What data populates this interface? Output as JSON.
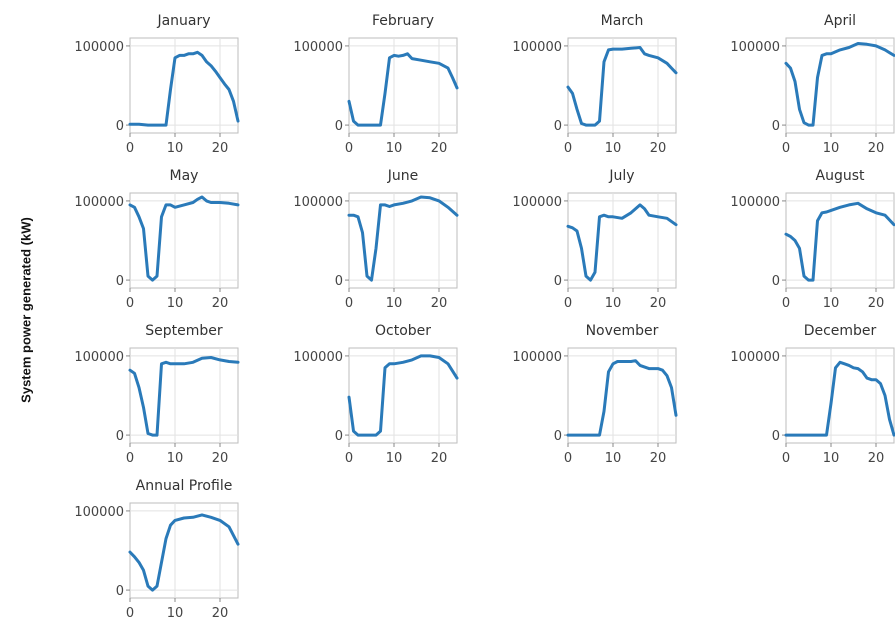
{
  "figure": {
    "ylabel": "System power generated (kW)"
  },
  "chart_data": [
    {
      "type": "line",
      "title": "January",
      "xlim": [
        0,
        24
      ],
      "ylim": [
        -10000,
        110000
      ],
      "xticks": [
        0,
        10,
        20
      ],
      "yticks": [
        0,
        100000
      ],
      "grid": true,
      "color": "#2a7ab9",
      "x": [
        0,
        2,
        4,
        6,
        7,
        8,
        9,
        10,
        11,
        12,
        13,
        14,
        15,
        16,
        17,
        18,
        19,
        20,
        21,
        22,
        23,
        24
      ],
      "values": [
        1000,
        1000,
        0,
        0,
        0,
        0,
        45000,
        85000,
        88000,
        88000,
        90000,
        90000,
        92000,
        88000,
        80000,
        75000,
        68000,
        60000,
        52000,
        45000,
        30000,
        5000
      ]
    },
    {
      "type": "line",
      "title": "February",
      "xlim": [
        0,
        24
      ],
      "ylim": [
        -10000,
        110000
      ],
      "xticks": [
        0,
        10,
        20
      ],
      "yticks": [
        0,
        100000
      ],
      "grid": true,
      "color": "#2a7ab9",
      "x": [
        0,
        1,
        2,
        3,
        4,
        5,
        6,
        7,
        8,
        9,
        10,
        11,
        12,
        13,
        14,
        16,
        18,
        20,
        22,
        23,
        24
      ],
      "values": [
        30000,
        5000,
        0,
        0,
        0,
        0,
        0,
        0,
        40000,
        85000,
        88000,
        87000,
        88000,
        90000,
        84000,
        82000,
        80000,
        78000,
        72000,
        60000,
        47000
      ]
    },
    {
      "type": "line",
      "title": "March",
      "xlim": [
        0,
        24
      ],
      "ylim": [
        -10000,
        110000
      ],
      "xticks": [
        0,
        10,
        20
      ],
      "yticks": [
        0,
        100000
      ],
      "grid": true,
      "color": "#2a7ab9",
      "x": [
        0,
        1,
        2,
        3,
        4,
        5,
        6,
        7,
        8,
        9,
        10,
        12,
        14,
        16,
        17,
        18,
        20,
        22,
        23,
        24
      ],
      "values": [
        48000,
        40000,
        20000,
        2000,
        0,
        0,
        0,
        5000,
        80000,
        95000,
        96000,
        96000,
        97000,
        98000,
        90000,
        88000,
        85000,
        78000,
        72000,
        66000
      ]
    },
    {
      "type": "line",
      "title": "April",
      "xlim": [
        0,
        24
      ],
      "ylim": [
        -10000,
        110000
      ],
      "xticks": [
        0,
        10,
        20
      ],
      "yticks": [
        0,
        100000
      ],
      "grid": true,
      "color": "#2a7ab9",
      "x": [
        0,
        1,
        2,
        3,
        4,
        5,
        6,
        7,
        8,
        9,
        10,
        12,
        14,
        16,
        18,
        20,
        22,
        24
      ],
      "values": [
        78000,
        72000,
        55000,
        20000,
        3000,
        0,
        0,
        60000,
        88000,
        90000,
        90000,
        95000,
        98000,
        103000,
        102000,
        100000,
        95000,
        88000
      ]
    },
    {
      "type": "line",
      "title": "May",
      "xlim": [
        0,
        24
      ],
      "ylim": [
        -10000,
        110000
      ],
      "xticks": [
        0,
        10,
        20
      ],
      "yticks": [
        0,
        100000
      ],
      "grid": true,
      "color": "#2a7ab9",
      "x": [
        0,
        1,
        2,
        3,
        4,
        5,
        6,
        7,
        8,
        9,
        10,
        12,
        14,
        15,
        16,
        17,
        18,
        20,
        22,
        24
      ],
      "values": [
        95000,
        92000,
        80000,
        65000,
        5000,
        0,
        5000,
        80000,
        95000,
        95000,
        92000,
        95000,
        98000,
        102000,
        105000,
        100000,
        98000,
        98000,
        97000,
        95000
      ]
    },
    {
      "type": "line",
      "title": "June",
      "xlim": [
        0,
        24
      ],
      "ylim": [
        -10000,
        110000
      ],
      "xticks": [
        0,
        10,
        20
      ],
      "yticks": [
        0,
        100000
      ],
      "grid": true,
      "color": "#2a7ab9",
      "x": [
        0,
        1,
        2,
        3,
        4,
        5,
        6,
        7,
        8,
        9,
        10,
        12,
        14,
        16,
        18,
        20,
        22,
        24
      ],
      "values": [
        82000,
        82000,
        80000,
        60000,
        5000,
        0,
        40000,
        95000,
        95000,
        93000,
        95000,
        97000,
        100000,
        105000,
        104000,
        100000,
        92000,
        82000
      ]
    },
    {
      "type": "line",
      "title": "July",
      "xlim": [
        0,
        24
      ],
      "ylim": [
        -10000,
        110000
      ],
      "xticks": [
        0,
        10,
        20
      ],
      "yticks": [
        0,
        100000
      ],
      "grid": true,
      "color": "#2a7ab9",
      "x": [
        0,
        1,
        2,
        3,
        4,
        5,
        6,
        7,
        8,
        9,
        10,
        12,
        14,
        16,
        17,
        18,
        20,
        22,
        24
      ],
      "values": [
        68000,
        66000,
        62000,
        40000,
        5000,
        0,
        10000,
        80000,
        82000,
        80000,
        80000,
        78000,
        85000,
        95000,
        90000,
        82000,
        80000,
        78000,
        70000
      ]
    },
    {
      "type": "line",
      "title": "August",
      "xlim": [
        0,
        24
      ],
      "ylim": [
        -10000,
        110000
      ],
      "xticks": [
        0,
        10,
        20
      ],
      "yticks": [
        0,
        100000
      ],
      "grid": true,
      "color": "#2a7ab9",
      "x": [
        0,
        1,
        2,
        3,
        4,
        5,
        6,
        7,
        8,
        9,
        10,
        12,
        14,
        16,
        18,
        20,
        22,
        24
      ],
      "values": [
        58000,
        55000,
        50000,
        40000,
        5000,
        0,
        0,
        75000,
        85000,
        86000,
        88000,
        92000,
        95000,
        97000,
        90000,
        85000,
        82000,
        70000
      ]
    },
    {
      "type": "line",
      "title": "September",
      "xlim": [
        0,
        24
      ],
      "ylim": [
        -10000,
        110000
      ],
      "xticks": [
        0,
        10,
        20
      ],
      "yticks": [
        0,
        100000
      ],
      "grid": true,
      "color": "#2a7ab9",
      "x": [
        0,
        1,
        2,
        3,
        4,
        5,
        6,
        7,
        8,
        9,
        10,
        12,
        14,
        16,
        18,
        20,
        22,
        24
      ],
      "values": [
        82000,
        78000,
        60000,
        35000,
        2000,
        0,
        0,
        90000,
        92000,
        90000,
        90000,
        90000,
        92000,
        97000,
        98000,
        95000,
        93000,
        92000
      ]
    },
    {
      "type": "line",
      "title": "October",
      "xlim": [
        0,
        24
      ],
      "ylim": [
        -10000,
        110000
      ],
      "xticks": [
        0,
        10,
        20
      ],
      "yticks": [
        0,
        100000
      ],
      "grid": true,
      "color": "#2a7ab9",
      "x": [
        0,
        1,
        2,
        3,
        4,
        5,
        6,
        7,
        8,
        9,
        10,
        12,
        14,
        16,
        18,
        20,
        22,
        24
      ],
      "values": [
        48000,
        5000,
        0,
        0,
        0,
        0,
        0,
        5000,
        85000,
        90000,
        90000,
        92000,
        95000,
        100000,
        100000,
        98000,
        90000,
        72000
      ]
    },
    {
      "type": "line",
      "title": "November",
      "xlim": [
        0,
        24
      ],
      "ylim": [
        -10000,
        110000
      ],
      "xticks": [
        0,
        10,
        20
      ],
      "yticks": [
        0,
        100000
      ],
      "grid": true,
      "color": "#2a7ab9",
      "x": [
        0,
        2,
        4,
        6,
        7,
        8,
        9,
        10,
        11,
        12,
        14,
        15,
        16,
        18,
        20,
        21,
        22,
        23,
        24
      ],
      "values": [
        0,
        0,
        0,
        0,
        0,
        30000,
        80000,
        90000,
        93000,
        93000,
        93000,
        94000,
        88000,
        84000,
        84000,
        82000,
        75000,
        60000,
        25000
      ]
    },
    {
      "type": "line",
      "title": "December",
      "xlim": [
        0,
        24
      ],
      "ylim": [
        -10000,
        110000
      ],
      "xticks": [
        0,
        10,
        20
      ],
      "yticks": [
        0,
        100000
      ],
      "grid": true,
      "color": "#2a7ab9",
      "x": [
        0,
        2,
        4,
        6,
        8,
        9,
        10,
        11,
        12,
        13,
        14,
        15,
        16,
        17,
        18,
        19,
        20,
        21,
        22,
        23,
        24
      ],
      "values": [
        0,
        0,
        0,
        0,
        0,
        0,
        40000,
        85000,
        92000,
        90000,
        88000,
        85000,
        84000,
        80000,
        72000,
        70000,
        70000,
        65000,
        50000,
        20000,
        0
      ]
    },
    {
      "type": "line",
      "title": "Annual Profile",
      "xlim": [
        0,
        24
      ],
      "ylim": [
        -10000,
        110000
      ],
      "xticks": [
        0,
        10,
        20
      ],
      "yticks": [
        0,
        100000
      ],
      "grid": true,
      "color": "#2a7ab9",
      "x": [
        0,
        1,
        2,
        3,
        4,
        5,
        6,
        7,
        8,
        9,
        10,
        12,
        14,
        16,
        18,
        20,
        22,
        24
      ],
      "values": [
        48000,
        42000,
        35000,
        25000,
        5000,
        0,
        5000,
        35000,
        65000,
        82000,
        88000,
        91000,
        92000,
        95000,
        92000,
        88000,
        80000,
        58000
      ]
    }
  ]
}
